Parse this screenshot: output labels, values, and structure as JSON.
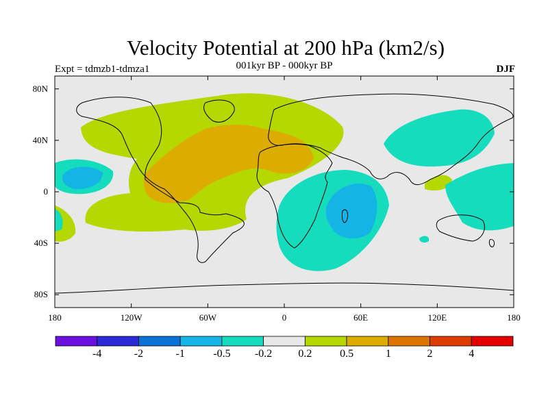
{
  "title": "Velocity Potential at 200 hPa (km2/s)",
  "subtitle": "001kyr BP - 000kyr BP",
  "experiment": "Expt = tdmzb1-tdmza1",
  "season": "DJF",
  "lat_ticks": [
    "80N",
    "40N",
    "0",
    "40S",
    "80S"
  ],
  "lat_values": [
    80,
    40,
    0,
    -40,
    -80
  ],
  "lon_ticks": [
    "180",
    "120W",
    "60W",
    "0",
    "60E",
    "120E",
    "180"
  ],
  "lon_values": [
    -180,
    -120,
    -60,
    0,
    60,
    120,
    180
  ],
  "colorbar": {
    "colors": [
      "#6a11e0",
      "#2a2bd6",
      "#0a72d6",
      "#14b4e4",
      "#14dcbc",
      "#e8e8e8",
      "#b4d800",
      "#dcac00",
      "#dc7400",
      "#dc3c00",
      "#e40000"
    ],
    "labels": [
      "-4",
      "-2",
      "-1",
      "-0.5",
      "-0.2",
      "0.2",
      "0.5",
      "1",
      "2",
      "4"
    ]
  },
  "colors": {
    "background": "#e8e8e8",
    "pos_weak": "#b4d800",
    "pos_mid": "#dcac00",
    "pos_strong": "#dc7400",
    "neg_weak": "#14dcbc",
    "neg_mid": "#14b4e4"
  }
}
